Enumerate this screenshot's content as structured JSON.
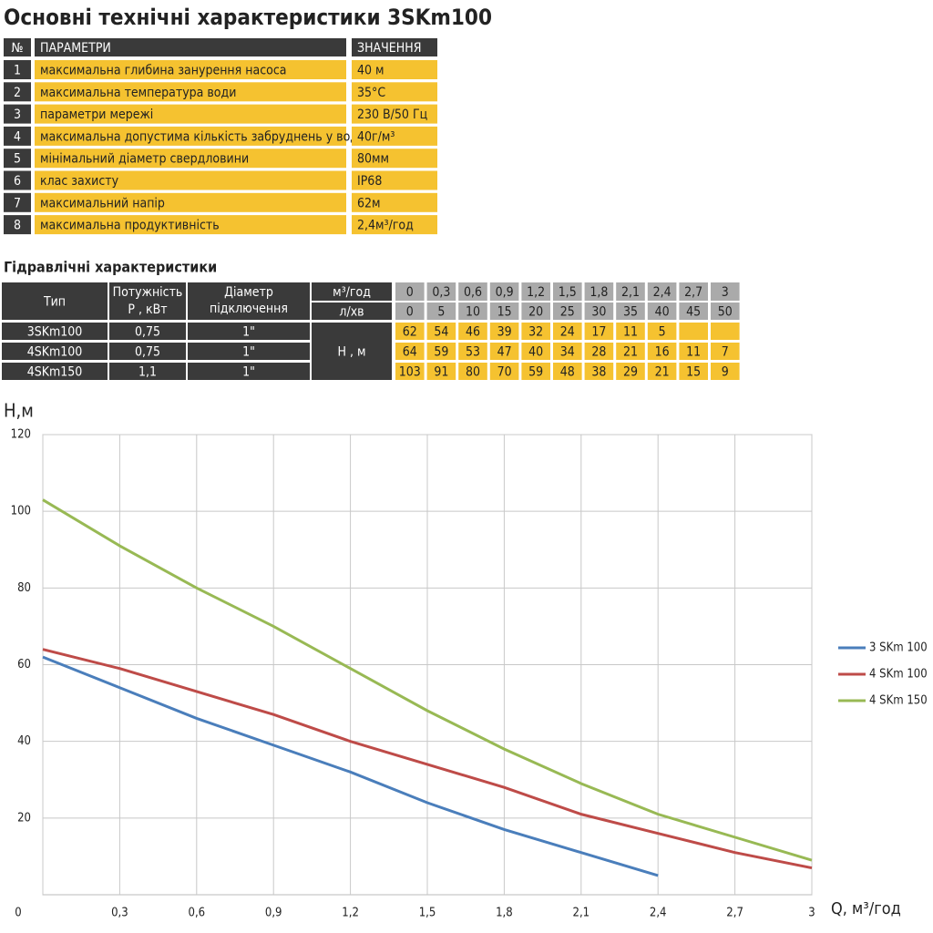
{
  "spec": {
    "title": "Основні технічні характеристики 3SKm100",
    "header": [
      "№",
      "ПАРАМЕТРИ",
      "ЗНАЧЕННЯ"
    ],
    "rows": [
      [
        "1",
        "максимальна глибина занурення насоса",
        "40 м"
      ],
      [
        "2",
        "максимальна температура води",
        "35°С"
      ],
      [
        "3",
        "параметри мережі",
        "230 В/50 Гц"
      ],
      [
        "4",
        "максимальна допустима кількість забруднень у воді",
        "40г/м³"
      ],
      [
        "5",
        "мінімальний діаметр свердловини",
        "80мм"
      ],
      [
        "6",
        "клас захисту",
        "IP68"
      ],
      [
        "7",
        "максимальний напір",
        "62м"
      ],
      [
        "8",
        "максимальна продуктивність",
        "2,4м³/год"
      ]
    ]
  },
  "hydro": {
    "title": "Гідравлічні характеристики",
    "header": [
      "Тип",
      "Потужність Р , кВт",
      "Діаметр підключення",
      "м³/год",
      "л/хв"
    ],
    "flow_m3h": [
      "0",
      "0,3",
      "0,6",
      "0,9",
      "1,2",
      "1,5",
      "1,8",
      "2,1",
      "2,4",
      "2,7",
      "3"
    ],
    "flow_lmin": [
      0,
      5,
      10,
      15,
      20,
      25,
      30,
      35,
      40,
      45,
      50
    ],
    "head_label": "Н , м",
    "rows": [
      {
        "model": "3SKm100",
        "power": "0,75",
        "diameter": "1\"",
        "heads": [
          62,
          54,
          46,
          39,
          32,
          24,
          17,
          11,
          5,
          null,
          null
        ]
      },
      {
        "model": "4SKm100",
        "power": "0,75",
        "diameter": "1\"",
        "heads": [
          64,
          59,
          53,
          47,
          40,
          34,
          28,
          21,
          16,
          11,
          7
        ]
      },
      {
        "model": "4SKm150",
        "power": "1,1",
        "diameter": "1\"",
        "heads": [
          103,
          91,
          80,
          70,
          59,
          48,
          38,
          29,
          21,
          15,
          9
        ]
      }
    ]
  },
  "chart_data": {
    "type": "line",
    "y_label": "Н,м",
    "x_label": "Q, м³/год",
    "xlim": [
      0,
      3
    ],
    "ylim": [
      0,
      120
    ],
    "xticks": [
      0,
      {
        "value": 0.3,
        "label": "0,3"
      },
      {
        "value": 0.6,
        "label": "0,6"
      },
      {
        "value": 0.9,
        "label": "0,9"
      },
      {
        "value": 1.2,
        "label": "1,2"
      },
      {
        "value": 1.5,
        "label": "1,5"
      },
      {
        "value": 1.8,
        "label": "1,8"
      },
      {
        "value": 2.1,
        "label": "2,1"
      },
      {
        "value": 2.4,
        "label": "2,4"
      },
      {
        "value": 2.7,
        "label": "2,7"
      },
      3
    ],
    "yticks": [
      20,
      40,
      60,
      80,
      100,
      120
    ],
    "grid": true,
    "legend": "right",
    "x": [
      0,
      0.3,
      0.6,
      0.9,
      1.2,
      1.5,
      1.8,
      2.1,
      2.4,
      2.7,
      3
    ],
    "series": [
      {
        "name": "3 SKm 100",
        "color": "#4a7ebb",
        "values": [
          62,
          54,
          46,
          39,
          32,
          24,
          17,
          11,
          5,
          null,
          null
        ]
      },
      {
        "name": "4 SKm 100",
        "color": "#be4b48",
        "values": [
          64,
          59,
          53,
          47,
          40,
          34,
          28,
          21,
          16,
          11,
          7
        ]
      },
      {
        "name": "4 SKm 150",
        "color": "#98b954",
        "values": [
          103,
          91,
          80,
          70,
          59,
          48,
          38,
          29,
          21,
          15,
          9
        ]
      }
    ]
  }
}
